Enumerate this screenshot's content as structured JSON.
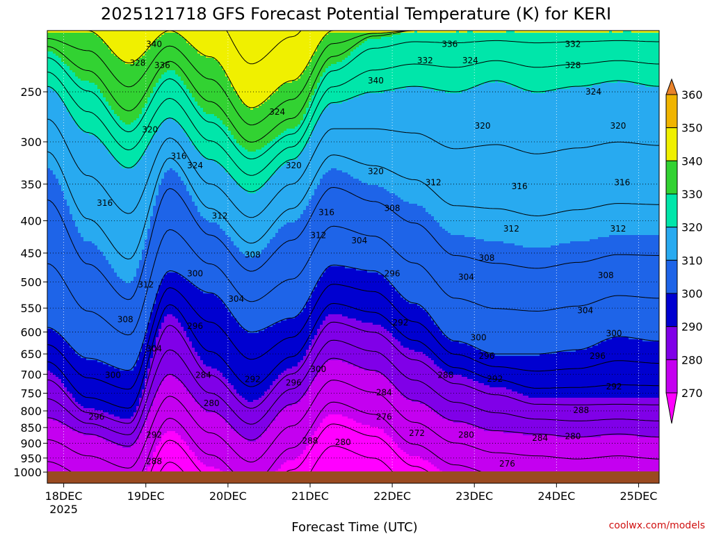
{
  "chart_data": {
    "type": "heatmap",
    "title": "2025121718 GFS Forecast Potential Temperature (K) for KERI",
    "xlabel": "Forecast Time (UTC)",
    "ylabel": "",
    "x_ticks": [
      "18DEC",
      "19DEC",
      "20DEC",
      "21DEC",
      "22DEC",
      "23DEC",
      "24DEC",
      "25DEC"
    ],
    "x_year": "2025",
    "y_ticks": [
      250,
      300,
      350,
      400,
      450,
      500,
      550,
      600,
      650,
      700,
      750,
      800,
      850,
      900,
      950,
      1000
    ],
    "y_range_hpa": [
      200,
      1000
    ],
    "y_scale": "log-pressure",
    "grid": true,
    "colorbar": {
      "levels": [
        270,
        280,
        290,
        300,
        310,
        320,
        330,
        340,
        350,
        360
      ],
      "colors": [
        "#ff00ff",
        "#c400f0",
        "#8000e8",
        "#0000d0",
        "#1e64e8",
        "#28aaf0",
        "#00e6aa",
        "#32d232",
        "#f0f000",
        "#f0b400",
        "#e8822a"
      ],
      "extend": "both"
    },
    "isentropes_K": [
      {
        "level": 340,
        "pressure_hpa": [
          200,
          200,
          225,
          200,
          220,
          265,
          240,
          200,
          200,
          200,
          200,
          200,
          200,
          200,
          200,
          200
        ]
      },
      {
        "level": 330,
        "pressure_hpa": [
          215,
          240,
          280,
          230,
          270,
          310,
          285,
          225,
          205,
          200,
          200,
          200,
          200,
          200,
          200,
          200
        ]
      },
      {
        "level": 320,
        "pressure_hpa": [
          245,
          290,
          330,
          275,
          320,
          360,
          320,
          260,
          250,
          245,
          250,
          240,
          250,
          245,
          240,
          245
        ]
      },
      {
        "level": 310,
        "pressure_hpa": [
          330,
          430,
          500,
          330,
          400,
          455,
          400,
          330,
          350,
          375,
          420,
          430,
          440,
          430,
          420,
          420
        ]
      },
      {
        "level": 300,
        "pressure_hpa": [
          590,
          660,
          690,
          480,
          520,
          600,
          570,
          470,
          480,
          540,
          620,
          650,
          650,
          640,
          610,
          620
        ]
      },
      {
        "level": 290,
        "pressure_hpa": [
          690,
          790,
          820,
          560,
          680,
          770,
          680,
          560,
          580,
          640,
          700,
          730,
          760,
          760,
          760,
          760
        ]
      },
      {
        "level": 280,
        "pressure_hpa": [
          820,
          870,
          910,
          700,
          800,
          890,
          780,
          660,
          690,
          770,
          830,
          860,
          870,
          880,
          870,
          880
        ]
      }
    ],
    "contour_labels": [
      {
        "text": "340",
        "x": 19.1,
        "p": 210
      },
      {
        "text": "328",
        "x": 18.9,
        "p": 225
      },
      {
        "text": "336",
        "x": 19.2,
        "p": 227
      },
      {
        "text": "320",
        "x": 19.05,
        "p": 287
      },
      {
        "text": "316",
        "x": 19.4,
        "p": 316
      },
      {
        "text": "324",
        "x": 19.6,
        "p": 327
      },
      {
        "text": "316",
        "x": 18.5,
        "p": 375
      },
      {
        "text": "312",
        "x": 19.9,
        "p": 393
      },
      {
        "text": "324",
        "x": 20.6,
        "p": 269
      },
      {
        "text": "320",
        "x": 20.8,
        "p": 327
      },
      {
        "text": "308",
        "x": 20.3,
        "p": 453
      },
      {
        "text": "312",
        "x": 19.0,
        "p": 505
      },
      {
        "text": "304",
        "x": 20.1,
        "p": 532
      },
      {
        "text": "308",
        "x": 18.75,
        "p": 573
      },
      {
        "text": "300",
        "x": 19.6,
        "p": 485
      },
      {
        "text": "304",
        "x": 19.1,
        "p": 638
      },
      {
        "text": "296",
        "x": 19.6,
        "p": 587
      },
      {
        "text": "300",
        "x": 18.6,
        "p": 702
      },
      {
        "text": "292",
        "x": 20.3,
        "p": 713
      },
      {
        "text": "284",
        "x": 19.7,
        "p": 702
      },
      {
        "text": "296",
        "x": 20.8,
        "p": 722
      },
      {
        "text": "300",
        "x": 21.1,
        "p": 687
      },
      {
        "text": "280",
        "x": 19.8,
        "p": 778
      },
      {
        "text": "296",
        "x": 18.4,
        "p": 818
      },
      {
        "text": "292",
        "x": 19.1,
        "p": 873
      },
      {
        "text": "288",
        "x": 19.1,
        "p": 962
      },
      {
        "text": "288",
        "x": 21.0,
        "p": 892
      },
      {
        "text": "280",
        "x": 21.4,
        "p": 897
      },
      {
        "text": "316",
        "x": 21.2,
        "p": 388
      },
      {
        "text": "312",
        "x": 21.1,
        "p": 422
      },
      {
        "text": "320",
        "x": 21.8,
        "p": 334
      },
      {
        "text": "340",
        "x": 21.8,
        "p": 240
      },
      {
        "text": "304",
        "x": 21.6,
        "p": 430
      },
      {
        "text": "308",
        "x": 22.0,
        "p": 382
      },
      {
        "text": "296",
        "x": 22.0,
        "p": 485
      },
      {
        "text": "292",
        "x": 22.1,
        "p": 580
      },
      {
        "text": "284",
        "x": 21.9,
        "p": 748
      },
      {
        "text": "276",
        "x": 21.9,
        "p": 818
      },
      {
        "text": "272",
        "x": 22.3,
        "p": 868
      },
      {
        "text": "332",
        "x": 22.4,
        "p": 223
      },
      {
        "text": "336",
        "x": 22.7,
        "p": 210
      },
      {
        "text": "324",
        "x": 22.95,
        "p": 223
      },
      {
        "text": "312",
        "x": 22.5,
        "p": 348
      },
      {
        "text": "320",
        "x": 23.1,
        "p": 283
      },
      {
        "text": "316",
        "x": 23.55,
        "p": 353
      },
      {
        "text": "312",
        "x": 23.45,
        "p": 412
      },
      {
        "text": "308",
        "x": 23.15,
        "p": 458
      },
      {
        "text": "304",
        "x": 22.9,
        "p": 491
      },
      {
        "text": "300",
        "x": 23.05,
        "p": 612
      },
      {
        "text": "296",
        "x": 23.15,
        "p": 655
      },
      {
        "text": "292",
        "x": 23.25,
        "p": 712
      },
      {
        "text": "288",
        "x": 22.65,
        "p": 702
      },
      {
        "text": "280",
        "x": 22.9,
        "p": 873
      },
      {
        "text": "276",
        "x": 23.4,
        "p": 970
      },
      {
        "text": "332",
        "x": 24.2,
        "p": 210
      },
      {
        "text": "328",
        "x": 24.2,
        "p": 227
      },
      {
        "text": "324",
        "x": 24.45,
        "p": 250
      },
      {
        "text": "320",
        "x": 24.75,
        "p": 283
      },
      {
        "text": "316",
        "x": 24.8,
        "p": 348
      },
      {
        "text": "312",
        "x": 24.75,
        "p": 412
      },
      {
        "text": "308",
        "x": 24.6,
        "p": 488
      },
      {
        "text": "304",
        "x": 24.35,
        "p": 555
      },
      {
        "text": "300",
        "x": 24.7,
        "p": 603
      },
      {
        "text": "296",
        "x": 24.5,
        "p": 655
      },
      {
        "text": "292",
        "x": 24.7,
        "p": 732
      },
      {
        "text": "288",
        "x": 24.3,
        "p": 798
      },
      {
        "text": "284",
        "x": 23.8,
        "p": 883
      },
      {
        "text": "280",
        "x": 24.2,
        "p": 878
      }
    ],
    "credit": "coolwx.com/models"
  }
}
